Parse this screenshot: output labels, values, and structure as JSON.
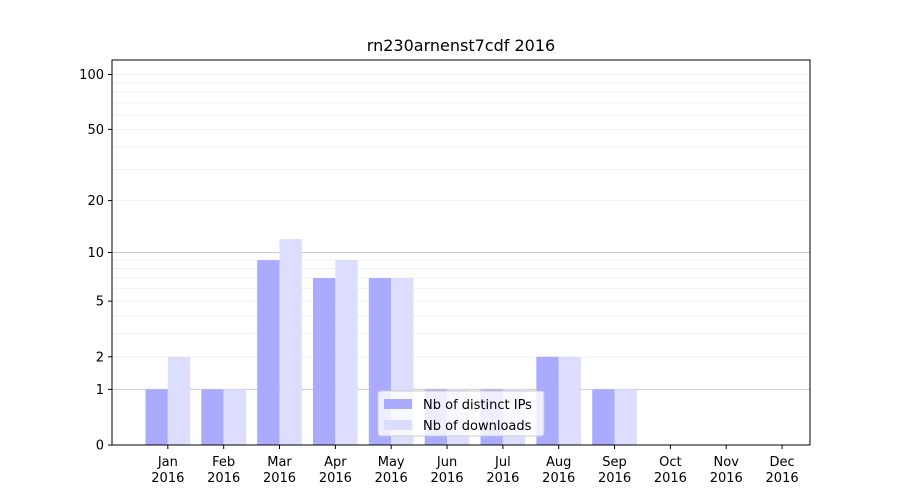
{
  "chart_data": {
    "type": "bar",
    "title": "rn230arnenst7cdf 2016",
    "categories": [
      "Jan\n2016",
      "Feb\n2016",
      "Mar\n2016",
      "Apr\n2016",
      "May\n2016",
      "Jun\n2016",
      "Jul\n2016",
      "Aug\n2016",
      "Sep\n2016",
      "Oct\n2016",
      "Nov\n2016",
      "Dec\n2016"
    ],
    "series": [
      {
        "name": "Nb of distinct IPs",
        "color": "#aaaaff",
        "values": [
          1,
          1,
          9,
          7,
          7,
          1,
          1,
          2,
          1,
          0,
          0,
          0
        ]
      },
      {
        "name": "Nb of downloads",
        "color": "#ddddff",
        "values": [
          2,
          1,
          12,
          9,
          7,
          1,
          1,
          2,
          1,
          0,
          0,
          0
        ]
      }
    ],
    "y_scale": "log(1+y)",
    "y_ticks": [
      0,
      1,
      2,
      5,
      10,
      20,
      50,
      100
    ],
    "ylim": [
      0,
      120
    ],
    "grid": true,
    "legend_position": "lower-center"
  }
}
